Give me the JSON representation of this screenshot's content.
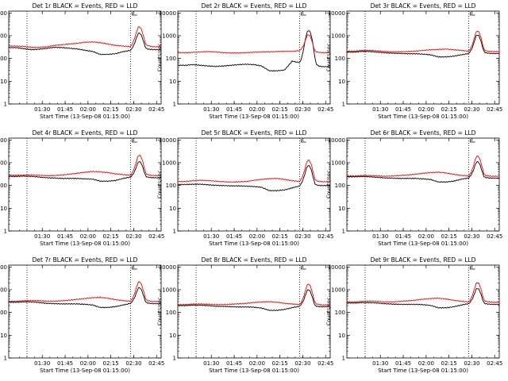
{
  "colors": {
    "events": "#000000",
    "lld": "#ff0000",
    "axes": "#000000",
    "marker": "#000000"
  },
  "chart_data": [
    {
      "type": "line",
      "title": "Det 1r BLACK = Events, RED = LLD",
      "xlabel": "Start Time (13-Sep-08 01:15:00)",
      "ylabel": "Counts/sec",
      "yscale": "log",
      "ylim": [
        1,
        12000
      ],
      "xlim_minutes": [
        0,
        100
      ],
      "x_ticks": [
        "01:30",
        "01:45",
        "02:00",
        "02:15",
        "02:30",
        "02:45"
      ],
      "y_ticks": [
        "1",
        "10",
        "100",
        "1000",
        "10000"
      ],
      "vlines_minutes": [
        12,
        80
      ],
      "series": [
        {
          "key": "events",
          "base": 300,
          "shape": [
            0,
            0,
            -0.08,
            -0.15,
            -0.12,
            -0.05,
            0.02,
            0,
            -0.05,
            -0.1,
            -0.2,
            -0.28,
            -0.5,
            -0.5,
            -0.45,
            -0.3,
            -0.2,
            0.6,
            -0.1,
            -0.15,
            -0.15
          ],
          "peak": 700
        },
        {
          "key": "lld",
          "base": 350,
          "shape": [
            0,
            0,
            -0.02,
            -0.1,
            -0.1,
            -0.05,
            0.05,
            0.1,
            0.15,
            0.2,
            0.28,
            0.3,
            0.25,
            0.15,
            0.05,
            0,
            -0.05,
            0.9,
            0.05,
            -0.05,
            -0.05
          ],
          "peak": 1400
        }
      ]
    },
    {
      "type": "line",
      "title": "Det 2r BLACK = Events, RED = LLD",
      "xlabel": "Start Time (13-Sep-08 01:15:00)",
      "ylabel": "Counts/sec",
      "yscale": "log",
      "ylim": [
        1,
        12000
      ],
      "xlim_minutes": [
        0,
        100
      ],
      "x_ticks": [
        "01:30",
        "01:45",
        "02:00",
        "02:15",
        "02:30",
        "02:45"
      ],
      "y_ticks": [
        "1",
        "10",
        "100",
        "1000",
        "10000"
      ],
      "vlines_minutes": [
        12,
        80
      ],
      "series": [
        {
          "key": "events",
          "base": 50,
          "shape": [
            0,
            0,
            0.05,
            0,
            -0.05,
            -0.08,
            -0.05,
            0,
            0.05,
            0.08,
            0.05,
            -0.05,
            -0.4,
            -0.4,
            -0.35,
            0.3,
            0.2,
            1.2,
            0.0,
            -0.1,
            -0.1
          ],
          "peak": 1500
        },
        {
          "key": "lld",
          "base": 180,
          "shape": [
            0,
            0,
            0.02,
            0.05,
            0.08,
            0.05,
            0,
            -0.02,
            -0.02,
            0,
            0.03,
            0.05,
            0.06,
            0.08,
            0.1,
            0.1,
            0.15,
            0.7,
            0.05,
            0,
            0
          ],
          "peak": 700
        }
      ]
    },
    {
      "type": "line",
      "title": "Det 3r BLACK = Events, RED = LLD",
      "xlabel": "Start Time (13-Sep-08 01:15:00)",
      "ylabel": "Counts/sec",
      "yscale": "log",
      "ylim": [
        1,
        12000
      ],
      "xlim_minutes": [
        0,
        100
      ],
      "x_ticks": [
        "01:30",
        "01:45",
        "02:00",
        "02:15",
        "02:30",
        "02:45"
      ],
      "y_ticks": [
        "1",
        "10",
        "100",
        "1000",
        "10000"
      ],
      "vlines_minutes": [
        12,
        80
      ],
      "series": [
        {
          "key": "events",
          "base": 190,
          "shape": [
            0,
            0,
            0.05,
            0.04,
            0,
            -0.05,
            -0.08,
            -0.1,
            -0.12,
            -0.12,
            -0.15,
            -0.2,
            -0.35,
            -0.35,
            -0.3,
            -0.2,
            -0.1,
            0.6,
            -0.05,
            -0.1,
            -0.1
          ],
          "peak": 700
        },
        {
          "key": "lld",
          "base": 210,
          "shape": [
            0,
            0,
            0.05,
            0.05,
            0.02,
            -0.02,
            -0.05,
            -0.05,
            -0.03,
            0,
            0.05,
            0.1,
            0.12,
            0.15,
            0.1,
            0.05,
            0,
            0.75,
            0.02,
            -0.03,
            -0.03
          ],
          "peak": 1100
        }
      ]
    },
    {
      "type": "line",
      "title": "Det 4r BLACK = Events, RED = LLD",
      "xlabel": "Start Time (13-Sep-08 01:15:00)",
      "ylabel": "Counts/sec",
      "yscale": "log",
      "ylim": [
        1,
        12000
      ],
      "xlim_minutes": [
        0,
        100
      ],
      "x_ticks": [
        "01:30",
        "01:45",
        "02:00",
        "02:15",
        "02:30",
        "02:45"
      ],
      "y_ticks": [
        "1",
        "10",
        "100",
        "1000",
        "10000"
      ],
      "vlines_minutes": [
        12,
        80
      ],
      "series": [
        {
          "key": "events",
          "base": 250,
          "shape": [
            0,
            0,
            0.02,
            0,
            -0.05,
            -0.1,
            -0.12,
            -0.15,
            -0.15,
            -0.15,
            -0.18,
            -0.2,
            -0.35,
            -0.35,
            -0.3,
            -0.15,
            -0.05,
            0.55,
            -0.05,
            -0.1,
            -0.1
          ],
          "peak": 650
        },
        {
          "key": "lld",
          "base": 280,
          "shape": [
            0,
            0,
            0.02,
            0.02,
            0,
            -0.03,
            -0.02,
            0.02,
            0.08,
            0.15,
            0.22,
            0.28,
            0.25,
            0.2,
            0.1,
            0.05,
            0,
            0.8,
            0.05,
            -0.02,
            -0.02
          ],
          "peak": 1400
        }
      ]
    },
    {
      "type": "line",
      "title": "Det 5r BLACK = Events, RED = LLD",
      "xlabel": "Start Time (13-Sep-08 01:15:00)",
      "ylabel": "Counts/sec",
      "yscale": "log",
      "ylim": [
        1,
        12000
      ],
      "xlim_minutes": [
        0,
        100
      ],
      "x_ticks": [
        "01:30",
        "01:45",
        "02:00",
        "02:15",
        "02:30",
        "02:45"
      ],
      "y_ticks": [
        "1",
        "10",
        "100",
        "1000",
        "10000"
      ],
      "vlines_minutes": [
        12,
        80
      ],
      "series": [
        {
          "key": "events",
          "base": 110,
          "shape": [
            0,
            0,
            0.02,
            0.02,
            -0.02,
            -0.06,
            -0.08,
            -0.1,
            -0.1,
            -0.12,
            -0.15,
            -0.2,
            -0.45,
            -0.45,
            -0.4,
            -0.25,
            -0.1,
            0.7,
            -0.05,
            -0.08,
            -0.08
          ],
          "peak": 500
        },
        {
          "key": "lld",
          "base": 150,
          "shape": [
            0,
            0,
            0.05,
            0.08,
            0.06,
            0.02,
            -0.02,
            -0.05,
            -0.03,
            0,
            0.08,
            0.15,
            0.2,
            0.22,
            0.15,
            0.05,
            0,
            0.8,
            0.05,
            -0.02,
            -0.02
          ],
          "peak": 900
        }
      ]
    },
    {
      "type": "line",
      "title": "Det 6r BLACK = Events, RED = LLD",
      "xlabel": "Start Time (13-Sep-08 01:15:00)",
      "ylabel": "Counts/sec",
      "yscale": "log",
      "ylim": [
        1,
        12000
      ],
      "xlim_minutes": [
        0,
        100
      ],
      "x_ticks": [
        "01:30",
        "01:45",
        "02:00",
        "02:15",
        "02:30",
        "02:45"
      ],
      "y_ticks": [
        "1",
        "10",
        "100",
        "1000",
        "10000"
      ],
      "vlines_minutes": [
        12,
        80
      ],
      "series": [
        {
          "key": "events",
          "base": 240,
          "shape": [
            0,
            0,
            0.02,
            0,
            -0.04,
            -0.08,
            -0.1,
            -0.12,
            -0.12,
            -0.12,
            -0.15,
            -0.2,
            -0.38,
            -0.38,
            -0.32,
            -0.18,
            -0.08,
            0.55,
            -0.05,
            -0.1,
            -0.1
          ],
          "peak": 650
        },
        {
          "key": "lld",
          "base": 260,
          "shape": [
            0,
            0,
            0.03,
            0.03,
            0.01,
            -0.02,
            0,
            0.04,
            0.08,
            0.13,
            0.2,
            0.25,
            0.28,
            0.22,
            0.12,
            0.05,
            0,
            0.8,
            0.05,
            -0.02,
            -0.02
          ],
          "peak": 1300
        }
      ]
    },
    {
      "type": "line",
      "title": "Det 7r BLACK = Events, RED = LLD",
      "xlabel": "Start Time (13-Sep-08 01:15:00)",
      "ylabel": "Counts/sec",
      "yscale": "log",
      "ylim": [
        1,
        12000
      ],
      "xlim_minutes": [
        0,
        100
      ],
      "x_ticks": [
        "01:30",
        "01:45",
        "02:00",
        "02:15",
        "02:30",
        "02:45"
      ],
      "y_ticks": [
        "1",
        "10",
        "100",
        "1000",
        "10000"
      ],
      "vlines_minutes": [
        12,
        80
      ],
      "series": [
        {
          "key": "events",
          "base": 280,
          "shape": [
            0,
            0,
            0.03,
            0.03,
            -0.02,
            -0.08,
            -0.1,
            -0.12,
            -0.12,
            -0.12,
            -0.15,
            -0.2,
            -0.38,
            -0.38,
            -0.32,
            -0.2,
            -0.08,
            0.55,
            -0.05,
            -0.1,
            -0.1
          ],
          "peak": 700
        },
        {
          "key": "lld",
          "base": 310,
          "shape": [
            0,
            0,
            0.04,
            0.06,
            0.04,
            0,
            0,
            0.04,
            0.08,
            0.14,
            0.2,
            0.26,
            0.28,
            0.22,
            0.12,
            0.05,
            0,
            0.8,
            0.05,
            -0.02,
            -0.02
          ],
          "peak": 1400
        }
      ]
    },
    {
      "type": "line",
      "title": "Det 8r BLACK = Events, RED = LLD",
      "xlabel": "Start Time (13-Sep-08 01:15:00)",
      "ylabel": "Counts/sec",
      "yscale": "log",
      "ylim": [
        1,
        12000
      ],
      "xlim_minutes": [
        0,
        100
      ],
      "x_ticks": [
        "01:30",
        "01:45",
        "02:00",
        "02:15",
        "02:30",
        "02:45"
      ],
      "y_ticks": [
        "1",
        "10",
        "100",
        "1000",
        "10000"
      ],
      "vlines_minutes": [
        12,
        80
      ],
      "series": [
        {
          "key": "events",
          "base": 200,
          "shape": [
            0,
            0,
            0.03,
            0.03,
            0,
            -0.05,
            -0.06,
            -0.08,
            -0.1,
            -0.1,
            -0.12,
            -0.18,
            -0.35,
            -0.35,
            -0.28,
            -0.15,
            -0.05,
            0.6,
            -0.05,
            -0.08,
            -0.08
          ],
          "peak": 600
        },
        {
          "key": "lld",
          "base": 220,
          "shape": [
            0,
            0,
            0.04,
            0.05,
            0.03,
            0,
            0,
            0.03,
            0.06,
            0.1,
            0.16,
            0.2,
            0.22,
            0.18,
            0.1,
            0.05,
            0,
            0.8,
            0.05,
            -0.02,
            -0.02
          ],
          "peak": 1200
        }
      ]
    },
    {
      "type": "line",
      "title": "Det 9r BLACK = Events, RED = LLD",
      "xlabel": "Start Time (13-Sep-08 01:15:00)",
      "ylabel": "Counts/sec",
      "yscale": "log",
      "ylim": [
        1,
        12000
      ],
      "xlim_minutes": [
        0,
        100
      ],
      "x_ticks": [
        "01:30",
        "01:45",
        "02:00",
        "02:15",
        "02:30",
        "02:45"
      ],
      "y_ticks": [
        "1",
        "10",
        "100",
        "1000",
        "10000"
      ],
      "vlines_minutes": [
        12,
        80
      ],
      "series": [
        {
          "key": "events",
          "base": 260,
          "shape": [
            0,
            0,
            0.03,
            0.03,
            0,
            -0.05,
            -0.08,
            -0.1,
            -0.1,
            -0.1,
            -0.12,
            -0.18,
            -0.35,
            -0.35,
            -0.28,
            -0.15,
            -0.05,
            0.55,
            -0.05,
            -0.1,
            -0.1
          ],
          "peak": 650
        },
        {
          "key": "lld",
          "base": 290,
          "shape": [
            0,
            0,
            0.04,
            0.06,
            0.04,
            0,
            0,
            0.04,
            0.08,
            0.13,
            0.2,
            0.25,
            0.27,
            0.22,
            0.12,
            0.05,
            0,
            0.8,
            0.05,
            -0.02,
            -0.02
          ],
          "peak": 1300
        }
      ]
    }
  ]
}
